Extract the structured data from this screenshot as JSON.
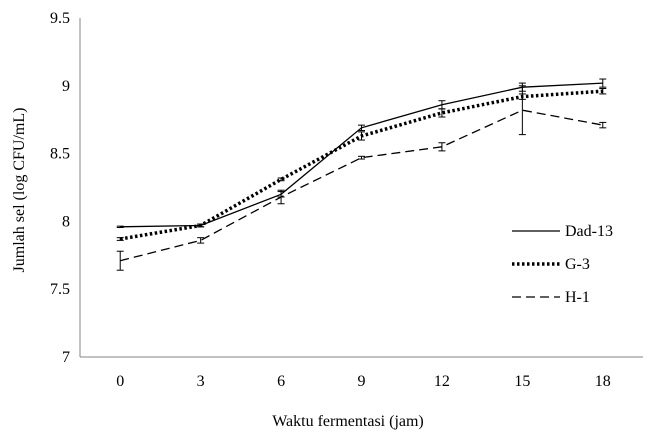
{
  "chart_data": {
    "type": "line",
    "xlabel": "Waktu fermentasi  (jam)",
    "ylabel": "Jumlah  sel (log CFU/mL)",
    "x": [
      0,
      3,
      6,
      9,
      12,
      15,
      18
    ],
    "x_tick_labels": [
      "0",
      "3",
      "6",
      "9",
      "12",
      "15",
      "18"
    ],
    "ylim": [
      7,
      9.5
    ],
    "y_ticks": [
      7,
      7.5,
      8,
      8.5,
      9,
      9.5
    ],
    "y_tick_labels": [
      "7",
      "7.5",
      "8",
      "8.5",
      "9",
      "9.5"
    ],
    "grid": false,
    "legend_position": "right",
    "series": [
      {
        "name": "Dad-13",
        "style": "solid",
        "color": "#000000",
        "values": [
          7.96,
          7.97,
          8.2,
          8.69,
          8.86,
          8.99,
          9.02
        ],
        "errors": [
          0.005,
          0.01,
          0.02,
          0.02,
          0.03,
          0.03,
          0.03
        ]
      },
      {
        "name": "G-3",
        "style": "dotted",
        "color": "#000000",
        "values": [
          7.87,
          7.97,
          8.31,
          8.63,
          8.8,
          8.92,
          8.96
        ],
        "errors": [
          0.01,
          0.01,
          0.01,
          0.03,
          0.03,
          0.02,
          0.02
        ]
      },
      {
        "name": "H-1",
        "style": "dashed",
        "color": "#000000",
        "values": [
          7.71,
          7.86,
          8.18,
          8.47,
          8.55,
          8.82,
          8.71
        ],
        "errors": [
          0.07,
          0.02,
          0.05,
          0.01,
          0.03,
          0.18,
          0.02
        ]
      }
    ]
  }
}
